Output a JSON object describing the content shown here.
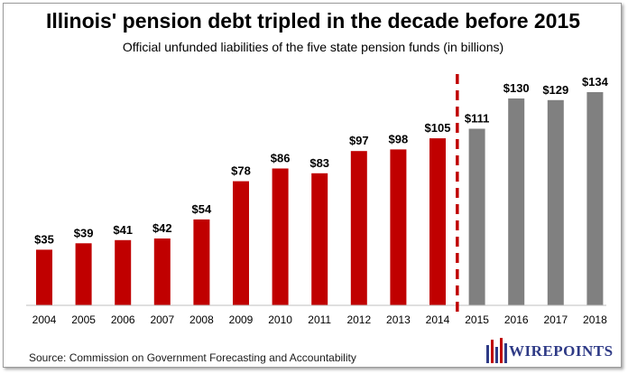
{
  "title": "Illinois' pension debt tripled in the decade before 2015",
  "subtitle": "Official unfunded liabilities of the five state pension funds (in billions)",
  "source": "Source: Commission on Government Forecasting and Accountability",
  "logo": {
    "text": "WIREPOINTS"
  },
  "colors": {
    "historical": "#c00000",
    "projected": "#808080",
    "divider": "#c00000"
  },
  "chart_data": {
    "type": "bar",
    "categories": [
      "2004",
      "2005",
      "2006",
      "2007",
      "2008",
      "2009",
      "2010",
      "2011",
      "2012",
      "2013",
      "2014",
      "2015",
      "2016",
      "2017",
      "2018"
    ],
    "values": [
      35,
      39,
      41,
      42,
      54,
      78,
      86,
      83,
      97,
      98,
      105,
      111,
      130,
      129,
      134
    ],
    "labels": [
      "$35",
      "$39",
      "$41",
      "$42",
      "$54",
      "$78",
      "$86",
      "$83",
      "$97",
      "$98",
      "$105",
      "$111",
      "$130",
      "$129",
      "$134"
    ],
    "bar_colors": [
      "#c00000",
      "#c00000",
      "#c00000",
      "#c00000",
      "#c00000",
      "#c00000",
      "#c00000",
      "#c00000",
      "#c00000",
      "#c00000",
      "#c00000",
      "#808080",
      "#808080",
      "#808080",
      "#808080"
    ],
    "divider_between": [
      "2014",
      "2015"
    ],
    "ylim": [
      0,
      134
    ],
    "grid": false,
    "xlabel": "",
    "ylabel": ""
  }
}
